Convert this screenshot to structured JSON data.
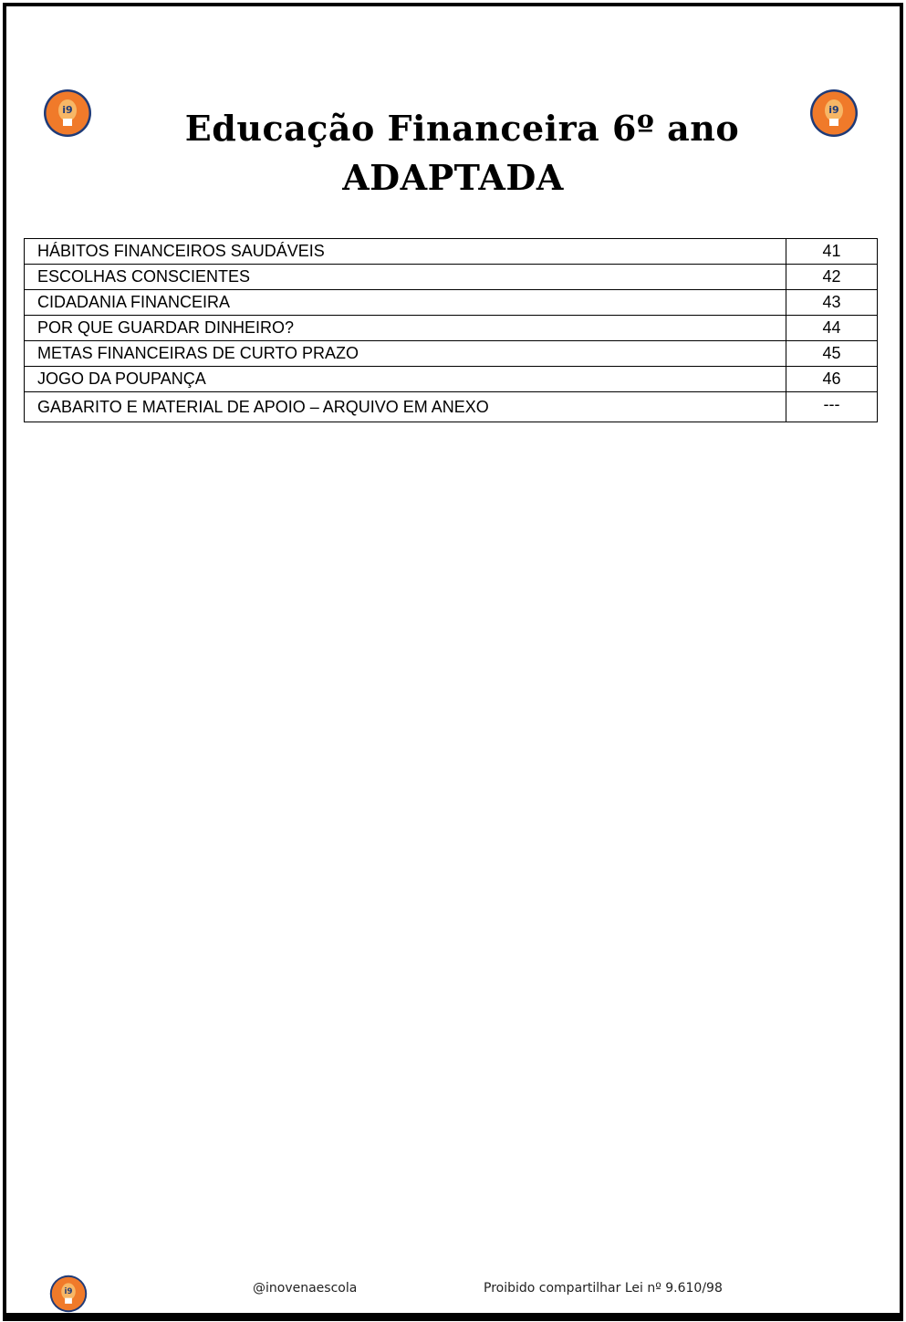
{
  "header": {
    "title_line1": "Educação Financeira 6º ano",
    "title_line2": "ADAPTADA",
    "logo": {
      "text": "i9",
      "colors": {
        "orange": "#f07a2a",
        "navy": "#1f3b78",
        "bulb": "#f7b766"
      }
    }
  },
  "contents": [
    {
      "topic": "HÁBITOS FINANCEIROS SAUDÁVEIS",
      "page": "41"
    },
    {
      "topic": "ESCOLHAS CONSCIENTES",
      "page": "42"
    },
    {
      "topic": "CIDADANIA FINANCEIRA",
      "page": "43"
    },
    {
      "topic": "POR QUE GUARDAR DINHEIRO?",
      "page": "44"
    },
    {
      "topic": "METAS FINANCEIRAS DE CURTO PRAZO",
      "page": "45"
    },
    {
      "topic": "JOGO DA POUPANÇA",
      "page": "46"
    },
    {
      "topic": "GABARITO E MATERIAL DE APOIO – ARQUIVO EM ANEXO",
      "page": "---"
    }
  ],
  "footer": {
    "handle": "@inovenaescola",
    "notice": "Proibido compartilhar Lei nº 9.610/98"
  }
}
